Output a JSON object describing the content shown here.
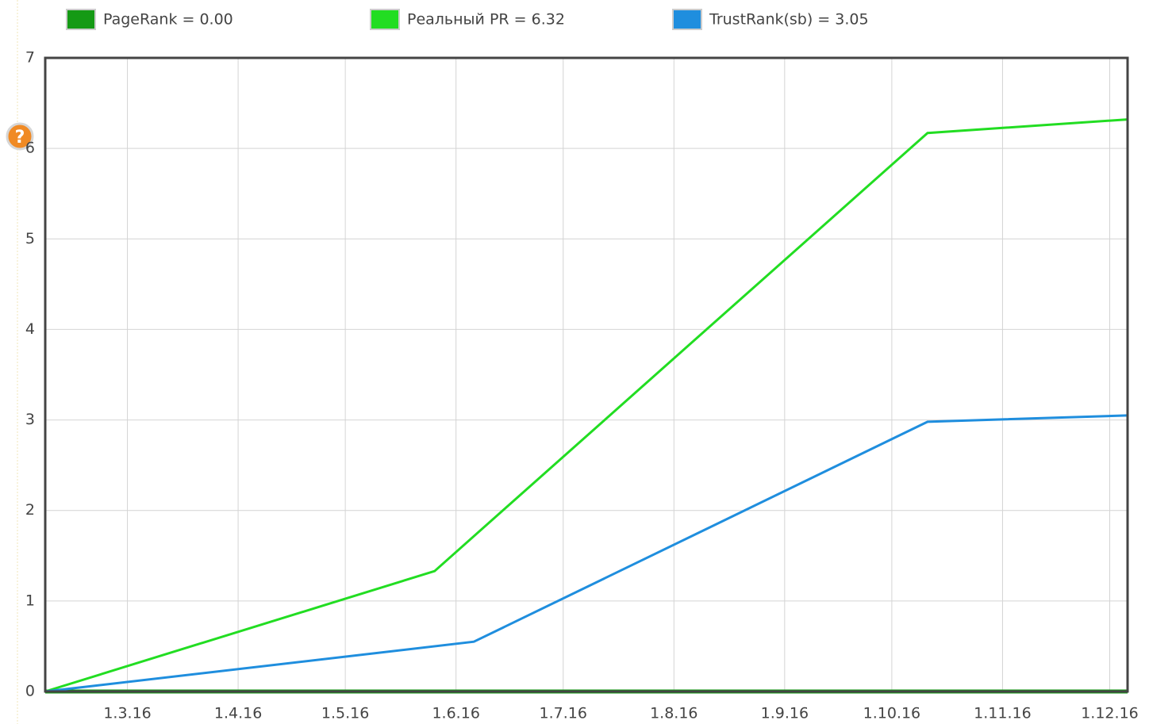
{
  "chart_data": {
    "type": "line",
    "series": [
      {
        "name": "PageRank = 0.00",
        "color": "#159a15",
        "x": [
          "2016-02-07",
          "2016-12-06"
        ],
        "values": [
          0,
          0
        ]
      },
      {
        "name": "Реальный PR = 6.32",
        "color": "#22dd22",
        "x": [
          "2016-02-07",
          "2016-05-26",
          "2016-10-11",
          "2016-12-06"
        ],
        "values": [
          0,
          1.33,
          6.17,
          6.32
        ]
      },
      {
        "name": "TrustRank(sb) = 3.05",
        "color": "#1f8ede",
        "x": [
          "2016-02-07",
          "2016-06-06",
          "2016-10-11",
          "2016-12-06"
        ],
        "values": [
          0,
          0.55,
          2.98,
          3.05
        ]
      }
    ],
    "xlim": [
      "2016-02-07",
      "2016-12-06"
    ],
    "xticks": [
      {
        "value": "2016-03-01",
        "label": "1.3.16"
      },
      {
        "value": "2016-04-01",
        "label": "1.4.16"
      },
      {
        "value": "2016-05-01",
        "label": "1.5.16"
      },
      {
        "value": "2016-06-01",
        "label": "1.6.16"
      },
      {
        "value": "2016-07-01",
        "label": "1.7.16"
      },
      {
        "value": "2016-08-01",
        "label": "1.8.16"
      },
      {
        "value": "2016-09-01",
        "label": "1.9.16"
      },
      {
        "value": "2016-10-01",
        "label": "1.10.16"
      },
      {
        "value": "2016-11-01",
        "label": "1.11.16"
      },
      {
        "value": "2016-12-01",
        "label": "1.12.16"
      }
    ],
    "ylim": [
      0,
      7
    ],
    "yticks": [
      0,
      1,
      2,
      3,
      4,
      5,
      6,
      7
    ],
    "grid": true,
    "legend": "top"
  }
}
